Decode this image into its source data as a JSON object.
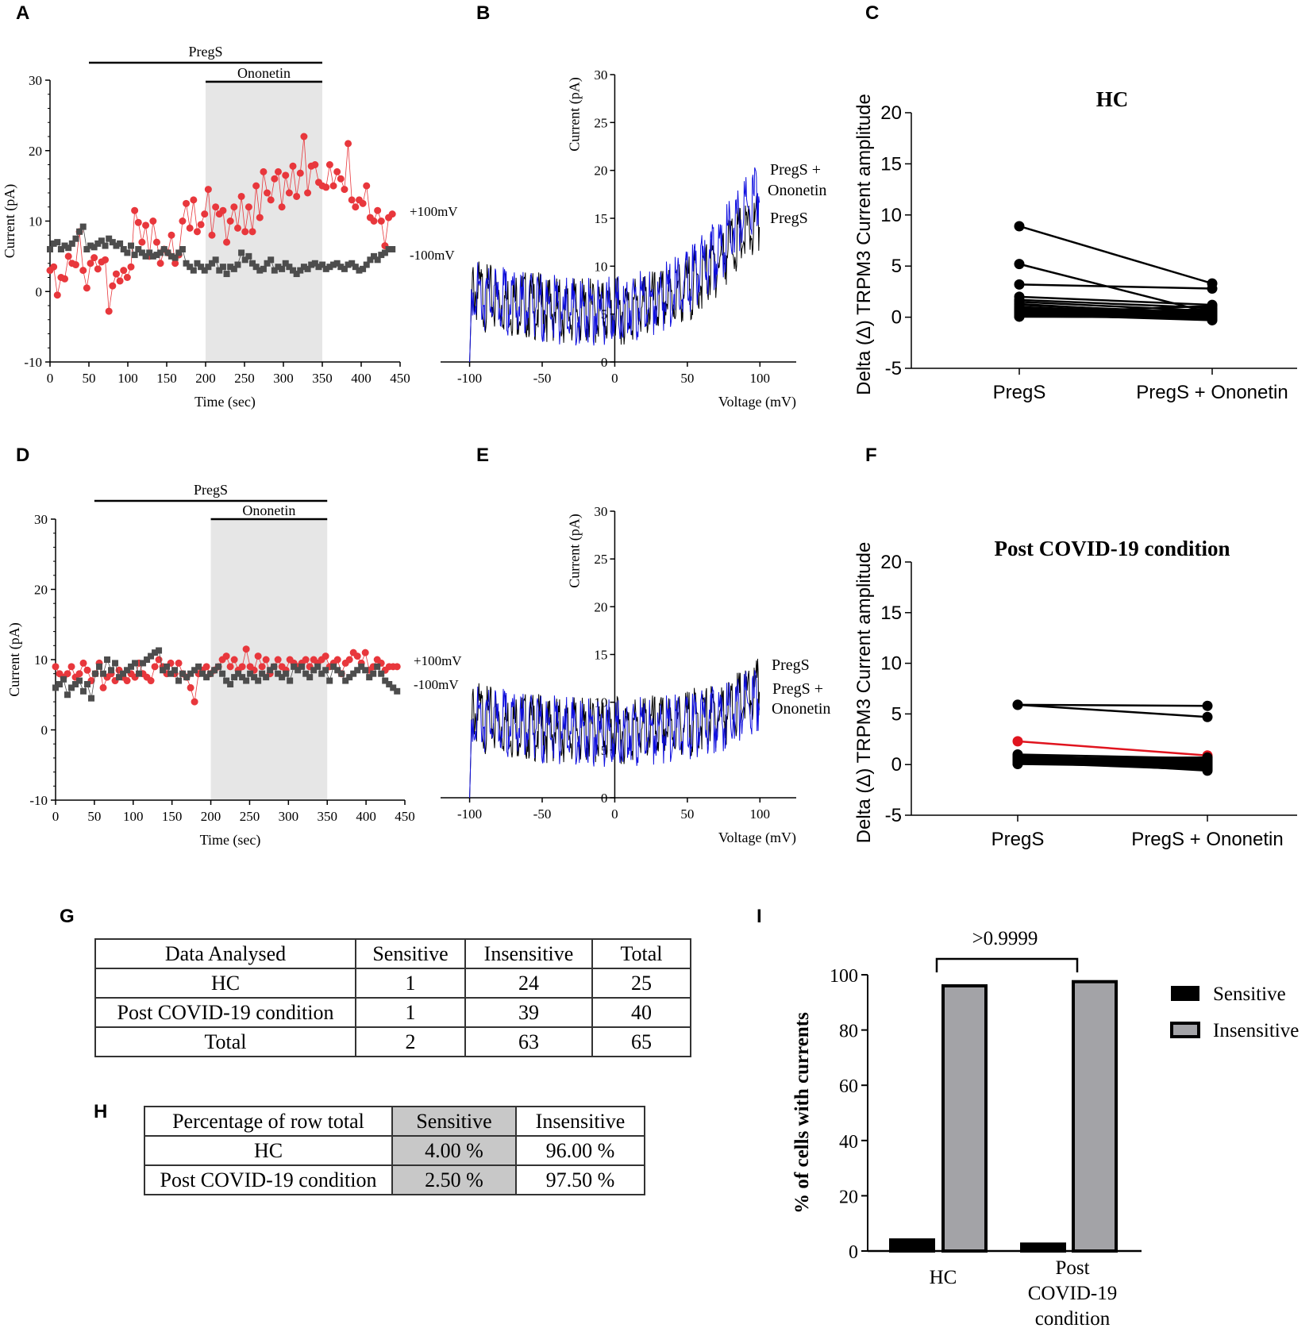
{
  "panel_letters": {
    "A": "A",
    "B": "B",
    "C": "C",
    "D": "D",
    "E": "E",
    "F": "F",
    "G": "G",
    "H": "H",
    "I": "I"
  },
  "chart_data": [
    {
      "id": "A",
      "type": "scatter",
      "xlabel": "Time (sec)",
      "ylabel": "Current (pA)",
      "xlim": [
        0,
        450
      ],
      "ylim": [
        -10,
        30
      ],
      "xticks": [
        "0",
        "50",
        "100",
        "150",
        "200",
        "250",
        "300",
        "350",
        "400",
        "450"
      ],
      "yticks": [
        "-10",
        "0",
        "10",
        "20",
        "30"
      ],
      "bar_top_label": "PregS",
      "bar_top_range": [
        50,
        350
      ],
      "bar_shade_label": "Ononetin",
      "bar_shade_range": [
        200,
        350
      ],
      "series": [
        {
          "name": "+100mV",
          "color": "#e8373c",
          "marker": "circle",
          "values": [
            3,
            3.5,
            -0.5,
            2,
            1.8,
            5,
            4,
            3.8,
            8.5,
            3,
            0.5,
            4,
            4.8,
            3.2,
            4.2,
            4.5,
            -2.8,
            0.8,
            2.5,
            1.5,
            3,
            2,
            3.5,
            11.5,
            9.8,
            7,
            9.4,
            5,
            10,
            7,
            4,
            6,
            5.5,
            8,
            4,
            5.2,
            10,
            12.5,
            9,
            13,
            8.5,
            9.5,
            11,
            14.5,
            8,
            12,
            11,
            11.5,
            7,
            10,
            12,
            9,
            13.5,
            8.5,
            12,
            8.5,
            15,
            10.5,
            17,
            14,
            13,
            16,
            17,
            12,
            16.5,
            14,
            17.8,
            13.5,
            16.8,
            22,
            14,
            17.8,
            18,
            15.5,
            15,
            14.8,
            18,
            15,
            17,
            16,
            14.5,
            21,
            13,
            12,
            13,
            12.5,
            15,
            10.5,
            10,
            11.5,
            10,
            6.5,
            10.5,
            11
          ]
        },
        {
          "name": "-100mV",
          "color": "#4d4d4d",
          "marker": "square",
          "values": [
            6,
            6.8,
            7,
            6,
            6.5,
            6.2,
            6.8,
            7.5,
            8.5,
            9.2,
            6,
            6.5,
            6.3,
            6.8,
            7.2,
            6.5,
            7.5,
            7,
            6.5,
            6.8,
            6,
            5.5,
            6.5,
            5.2,
            6,
            5.5,
            5,
            5.5,
            5,
            5.2,
            5.5,
            6,
            5.5,
            5,
            4.8,
            5.5,
            6,
            4,
            3.5,
            3,
            4,
            3.5,
            3,
            3.5,
            4,
            4.5,
            3,
            3.5,
            2.5,
            3.5,
            3.2,
            3.8,
            5.5,
            4.5,
            5,
            4,
            3.5,
            3,
            3.2,
            4,
            4.5,
            3,
            3.5,
            3.2,
            4,
            3.5,
            3,
            2.5,
            3,
            3.5,
            3.2,
            3.8,
            4,
            3.5,
            3.8,
            3.2,
            3.5,
            3.8,
            4,
            3.5,
            3.2,
            3.8,
            4,
            3.5,
            3,
            3.2,
            3.8,
            4.5,
            5,
            4.5,
            5.2,
            5.5,
            6,
            6
          ]
        }
      ]
    },
    {
      "id": "B",
      "type": "line",
      "xlabel": "Voltage (mV)",
      "ylabel": "Current (pA)",
      "xlim": [
        -120,
        125
      ],
      "ylim": [
        0,
        30
      ],
      "xticks": [
        "-100",
        "-50",
        "0",
        "50",
        "100"
      ],
      "yticks": [
        "0",
        "5",
        "10",
        "15",
        "20",
        "25",
        "30"
      ],
      "series": [
        {
          "name": "PregS",
          "color": "#000000",
          "x": [
            -100,
            -98,
            -90,
            -70,
            -50,
            -30,
            -10,
            0,
            20,
            40,
            60,
            70,
            80,
            90,
            100
          ],
          "values": [
            0,
            9.5,
            8.5,
            8,
            7.5,
            7,
            7,
            7,
            7.5,
            8.5,
            10.5,
            12,
            14,
            15,
            16
          ]
        },
        {
          "name": "PregS + Ononetin",
          "color": "#1010e0",
          "x": [
            -100,
            -98,
            -90,
            -70,
            -50,
            -30,
            -10,
            0,
            20,
            40,
            60,
            70,
            80,
            90,
            100
          ],
          "values": [
            0,
            10,
            8.5,
            8,
            7.5,
            7,
            7,
            7.2,
            7.8,
            9,
            11.5,
            13,
            15.5,
            17.5,
            20
          ]
        }
      ],
      "legend": [
        "PregS +",
        "Ononetin",
        "PregS"
      ]
    },
    {
      "id": "C",
      "type": "line",
      "title": "HC",
      "ylabel": "Delta (Δ) TRPM3 Current amplitude",
      "categories": [
        "PregS",
        "PregS + Ononetin"
      ],
      "ylim": [
        -5,
        20
      ],
      "yticks": [
        "-5",
        "0",
        "5",
        "10",
        "15",
        "20"
      ],
      "pairs": [
        [
          8.9,
          3.3
        ],
        [
          5.2,
          0.4
        ],
        [
          3.2,
          2.8
        ],
        [
          2.0,
          1.2
        ],
        [
          1.7,
          0.9
        ],
        [
          1.5,
          0.6
        ],
        [
          1.2,
          0.4
        ],
        [
          1.0,
          0.3
        ],
        [
          0.9,
          0.2
        ],
        [
          0.8,
          0.1
        ],
        [
          0.7,
          0.0
        ],
        [
          0.6,
          -0.1
        ],
        [
          0.5,
          -0.2
        ],
        [
          0.4,
          0.3
        ],
        [
          0.3,
          0.5
        ],
        [
          0.3,
          -0.3
        ],
        [
          0.2,
          0.1
        ],
        [
          0.2,
          0.8
        ],
        [
          0.1,
          0.2
        ],
        [
          0.1,
          -0.1
        ],
        [
          0.05,
          0.0
        ],
        [
          0.4,
          1.1
        ],
        [
          0.6,
          0.6
        ],
        [
          0.9,
          0.4
        ],
        [
          1.3,
          0.2
        ]
      ],
      "highlight_pair": -1
    },
    {
      "id": "D",
      "type": "scatter",
      "xlabel": "Time (sec)",
      "ylabel": "Current (pA)",
      "xlim": [
        0,
        450
      ],
      "ylim": [
        -10,
        30
      ],
      "xticks": [
        "0",
        "50",
        "100",
        "150",
        "200",
        "250",
        "300",
        "350",
        "400",
        "450"
      ],
      "yticks": [
        "-10",
        "0",
        "10",
        "20",
        "30"
      ],
      "bar_top_label": "PregS",
      "bar_top_range": [
        50,
        350
      ],
      "bar_shade_label": "Ononetin",
      "bar_shade_range": [
        200,
        350
      ],
      "series": [
        {
          "name": "+100mV",
          "color": "#e8373c",
          "marker": "circle",
          "values": [
            9,
            8,
            7.5,
            8,
            9,
            7.5,
            8,
            9.5,
            8.5,
            7,
            8,
            9.5,
            6,
            7.5,
            8,
            7,
            8.5,
            7.5,
            7,
            8,
            7.5,
            9.5,
            8,
            7.5,
            7,
            9,
            10,
            9,
            8,
            9.5,
            8,
            9.5,
            8,
            7.5,
            6,
            4,
            8,
            8.5,
            9,
            8,
            8.5,
            9,
            10,
            10.5,
            9,
            10,
            8.5,
            9,
            11.5,
            9,
            8.5,
            10.5,
            9,
            10,
            8,
            9,
            10,
            9,
            8.5,
            10,
            9.5,
            9,
            9.5,
            10,
            9,
            10,
            9.5,
            10,
            10.5,
            9,
            9.5,
            10,
            8,
            9.5,
            10,
            11,
            10.5,
            9.5,
            11,
            8.5,
            9,
            10,
            9.5,
            8.5,
            9,
            9,
            9
          ]
        },
        {
          "name": "-100mV",
          "color": "#4d4d4d",
          "marker": "square",
          "values": [
            6,
            6.5,
            7.2,
            5,
            6,
            6.5,
            7,
            5.5,
            6.5,
            4.5,
            8,
            9,
            8,
            10,
            8.5,
            9.5,
            7.5,
            8,
            8.5,
            9,
            9.5,
            8,
            9.5,
            10,
            10.5,
            11,
            11.3,
            8.5,
            9,
            8,
            8.5,
            7,
            8,
            7.5,
            8,
            8.5,
            9,
            8,
            7.5,
            8,
            8.5,
            9,
            8,
            7,
            6.5,
            7.5,
            8,
            7.5,
            7,
            8,
            7.5,
            7,
            8,
            7.5,
            8.5,
            9,
            8,
            7.5,
            8,
            7,
            9,
            8.5,
            9,
            8,
            7.5,
            8.5,
            9,
            8,
            8.5,
            7,
            9,
            8.5,
            8,
            7,
            7.5,
            8,
            8.5,
            9,
            8.5,
            7.5,
            8,
            9,
            8,
            7,
            6.5,
            6,
            5.5
          ]
        }
      ]
    },
    {
      "id": "E",
      "type": "line",
      "xlabel": "Voltage (mV)",
      "ylabel": "Current (pA)",
      "xlim": [
        -120,
        125
      ],
      "ylim": [
        0,
        30
      ],
      "xticks": [
        "-100",
        "-50",
        "0",
        "50",
        "100"
      ],
      "yticks": [
        "0",
        "5",
        "10",
        "15",
        "20",
        "25",
        "30"
      ],
      "series": [
        {
          "name": "PregS",
          "color": "#000000",
          "x": [
            -100,
            -98,
            -90,
            -70,
            -50,
            -30,
            -10,
            0,
            20,
            40,
            60,
            80,
            100
          ],
          "values": [
            0,
            11,
            10,
            9.5,
            9,
            8.8,
            8.7,
            8.8,
            9,
            9.2,
            10,
            11,
            13
          ]
        },
        {
          "name": "PregS + Ononetin",
          "color": "#1010e0",
          "x": [
            -100,
            -98,
            -90,
            -70,
            -50,
            -30,
            -10,
            0,
            20,
            40,
            60,
            80,
            100
          ],
          "values": [
            0,
            11,
            10,
            9.5,
            9,
            8.8,
            8.5,
            8.5,
            8.8,
            9,
            9.5,
            10.5,
            12.5
          ]
        }
      ],
      "legend": [
        "PregS",
        "PregS +",
        "Ononetin"
      ]
    },
    {
      "id": "F",
      "type": "line",
      "title": "Post COVID-19 condition",
      "ylabel": "Delta (Δ) TRPM3 Current amplitude",
      "categories": [
        "PregS",
        "PregS + Ononetin"
      ],
      "ylim": [
        -5,
        20
      ],
      "yticks": [
        "-5",
        "0",
        "5",
        "10",
        "15",
        "20"
      ],
      "pairs": [
        [
          5.9,
          5.8
        ],
        [
          5.9,
          4.7
        ],
        [
          2.3,
          0.9
        ],
        [
          1.0,
          0.6
        ],
        [
          0.9,
          0.2
        ],
        [
          0.8,
          -0.1
        ],
        [
          0.7,
          0.3
        ],
        [
          0.6,
          0.0
        ],
        [
          0.5,
          -0.2
        ],
        [
          0.4,
          0.4
        ],
        [
          0.4,
          -0.4
        ],
        [
          0.3,
          0.1
        ],
        [
          0.3,
          -0.3
        ],
        [
          0.2,
          0.2
        ],
        [
          0.2,
          -0.5
        ],
        [
          0.1,
          0.0
        ],
        [
          0.1,
          0.5
        ],
        [
          0.05,
          -0.2
        ],
        [
          0.6,
          0.7
        ],
        [
          0.8,
          0.4
        ],
        [
          0.5,
          -0.6
        ],
        [
          0.3,
          0.6
        ],
        [
          0.4,
          0.2
        ],
        [
          0.7,
          -0.4
        ],
        [
          0.2,
          0.3
        ]
      ],
      "highlight_pair": 2
    },
    {
      "id": "I",
      "type": "bar",
      "ylabel": "% of cells with currents",
      "categories": [
        "HC",
        "Post COVID-19 condition"
      ],
      "series": [
        {
          "name": "Sensitive",
          "color": "#000000",
          "values": [
            4.0,
            2.5
          ]
        },
        {
          "name": "Insensitive",
          "color": "#a3a3a7",
          "values": [
            96.0,
            97.5
          ]
        }
      ],
      "ylim": [
        0,
        100
      ],
      "yticks": [
        "0",
        "20",
        "40",
        "60",
        "80",
        "100"
      ],
      "annotation": ">0.9999"
    }
  ],
  "labels": {
    "plus100": "+100mV",
    "minus100": "-100mV",
    "pregs": "PregS",
    "pregs_plus": "PregS +",
    "ononetin": "Ononetin",
    "cat_hc": "HC",
    "cat_post1": "Post",
    "cat_post2": "COVID-19",
    "cat_post3": "condition"
  },
  "table_g": {
    "headers": [
      "Data Analysed",
      "Sensitive",
      "Insensitive",
      "Total"
    ],
    "rows": [
      [
        "HC",
        "1",
        "24",
        "25"
      ],
      [
        "Post COVID-19 condition",
        "1",
        "39",
        "40"
      ],
      [
        "Total",
        "2",
        "63",
        "65"
      ]
    ]
  },
  "table_h": {
    "headers": [
      "Percentage of row total",
      "Sensitive",
      "Insensitive"
    ],
    "rows": [
      [
        "HC",
        "4.00 %",
        "96.00 %"
      ],
      [
        "Post COVID-19 condition",
        "2.50 %",
        "97.50 %"
      ]
    ]
  }
}
